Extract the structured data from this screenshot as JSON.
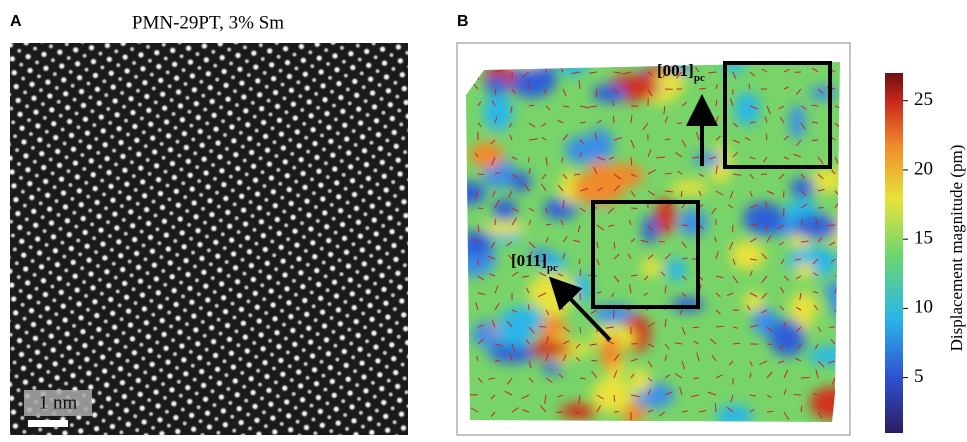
{
  "panel_a": {
    "label": "A",
    "title": "PMN-29PT, 3% Sm",
    "scale_bar": "1 nm"
  },
  "panel_b": {
    "label": "B",
    "annotations": [
      {
        "text": "[001]",
        "subscript": "pc"
      },
      {
        "text": "[011]",
        "subscript": "pc"
      }
    ],
    "colorbar": {
      "label": "Displacement magnitude (pm)",
      "lim": [
        1,
        27
      ],
      "ticks": [
        5,
        10,
        15,
        20,
        25
      ]
    }
  }
}
